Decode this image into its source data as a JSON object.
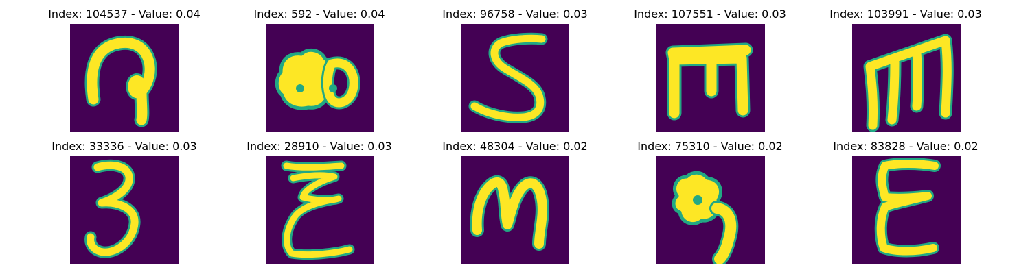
{
  "figure": {
    "colors": {
      "background": "#440154",
      "stroke": "#fde725",
      "edge": "#22a884"
    },
    "panels": [
      {
        "title": "Index: 104537 - Value: 0.04",
        "glyph": "loop-hook"
      },
      {
        "title": "Index: 592 - Value: 0.04",
        "glyph": "blob-ring"
      },
      {
        "title": "Index: 96758 - Value: 0.03",
        "glyph": "s-shape"
      },
      {
        "title": "Index: 107551 - Value: 0.03",
        "glyph": "square-m"
      },
      {
        "title": "Index: 103991 - Value: 0.03",
        "glyph": "slanted-m"
      },
      {
        "title": "Index: 33336 - Value: 0.03",
        "glyph": "three"
      },
      {
        "title": "Index: 28910 - Value: 0.03",
        "glyph": "curly-e"
      },
      {
        "title": "Index: 48304 - Value: 0.02",
        "glyph": "rounded-m"
      },
      {
        "title": "Index: 75310 - Value: 0.02",
        "glyph": "blob-hook"
      },
      {
        "title": "Index: 83828 - Value: 0.02",
        "glyph": "epsilon"
      }
    ]
  }
}
